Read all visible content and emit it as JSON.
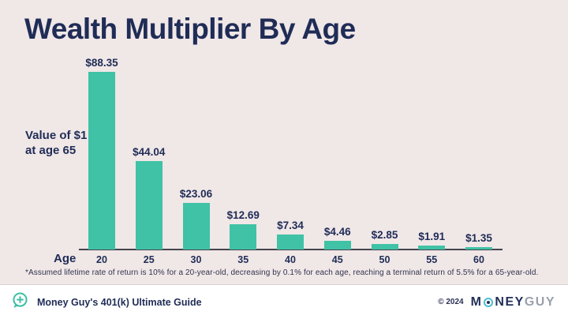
{
  "page_title": "Wealth Multiplier By Age",
  "chart_data": {
    "type": "bar",
    "title": "Wealth Multiplier By Age",
    "xlabel": "Age",
    "ylabel": "Value of $1 at age 65",
    "categories": [
      "20",
      "25",
      "30",
      "35",
      "40",
      "45",
      "50",
      "55",
      "60"
    ],
    "values": [
      88.35,
      44.04,
      23.06,
      12.69,
      7.34,
      4.46,
      2.85,
      1.91,
      1.35
    ],
    "value_labels": [
      "$88.35",
      "$44.04",
      "$23.06",
      "$12.69",
      "$7.34",
      "$4.46",
      "$2.85",
      "$1.91",
      "$1.35"
    ],
    "ylim": [
      0,
      92
    ],
    "grid": false,
    "legend": "none",
    "bar_color": "#3FC2A5"
  },
  "ylabel": {
    "line1": "Value of $1",
    "line2": "at age 65"
  },
  "xlabel": "Age",
  "footnote": "*Assumed lifetime rate of return is 10% for a 20-year-old, decreasing by 0.1% for each age, reaching a terminal return of 5.5% for a 65-year-old.",
  "footer": {
    "guide_label": "Money Guy's 401(k) Ultimate Guide",
    "copyright": "© 2024",
    "brand": {
      "m": "M",
      "ney": "NEY",
      "guy": "GUY"
    }
  },
  "colors": {
    "background": "#F0E7E7",
    "bar": "#3FC2A5",
    "navy": "#1F2C56",
    "axis": "#44454F",
    "footer_bg": "#FFFFFF",
    "brand_teal": "#3DBFA5",
    "brand_o_ring": "#4CBDD2",
    "brand_guy_gray": "#9AA0AB"
  }
}
